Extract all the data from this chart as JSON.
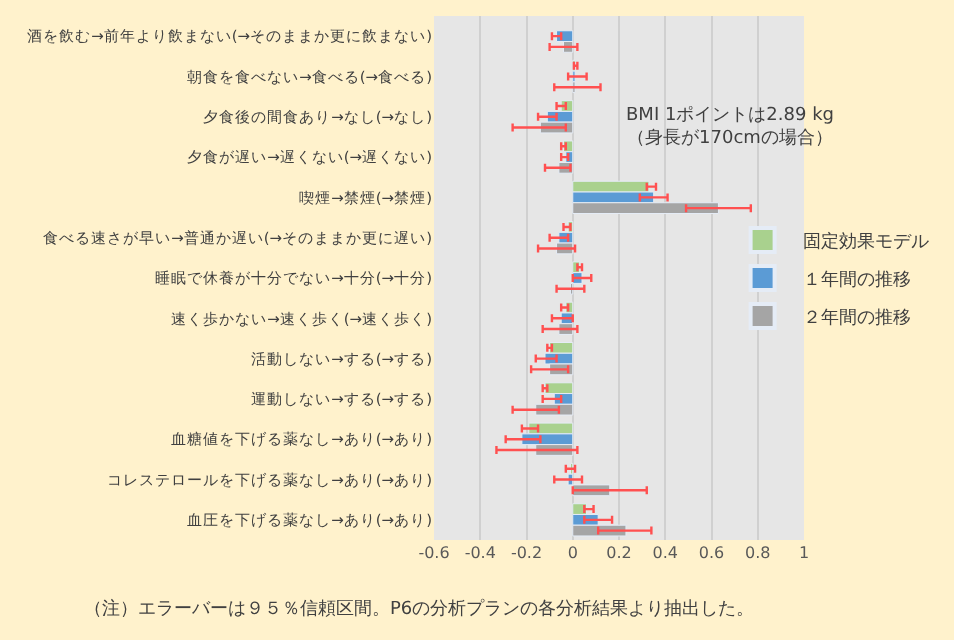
{
  "chart_data": {
    "type": "bar",
    "orientation": "horizontal",
    "categories": [
      "酒を飲む→前年より飲まない(→そのままか更に飲まない)",
      "朝食を食べない→食べる(→食べる)",
      "夕食後の間食あり→なし(→なし)",
      "夕食が遅い→遅くない(→遅くない)",
      "喫煙→禁煙(→禁煙)",
      "食べる速さが早い→普通か遅い(→そのままか更に遅い)",
      "睡眠で休養が十分でない→十分(→十分)",
      "速く歩かない→速く歩く(→速く歩く)",
      "活動しない→する(→する)",
      "運動しない→する(→する)",
      "血糖値を下げる薬なし→あり(→あり)",
      "コレステロールを下げる薬なし→あり(→あり)",
      "血圧を下げる薬なし→あり(→あり)"
    ],
    "series": [
      {
        "name": "固定効果モデル",
        "color": "#a9d18e",
        "values": [
          null,
          0.01,
          -0.05,
          -0.04,
          0.33,
          -0.02,
          0.03,
          -0.03,
          -0.1,
          -0.12,
          -0.19,
          -0.01,
          0.06
        ],
        "errors": [
          null,
          [
            0.005,
            0.02
          ],
          [
            -0.07,
            -0.03
          ],
          [
            -0.05,
            -0.03
          ],
          [
            0.32,
            0.36
          ],
          [
            -0.04,
            -0.01
          ],
          [
            0.02,
            0.04
          ],
          [
            -0.05,
            -0.02
          ],
          [
            -0.11,
            -0.09
          ],
          [
            -0.13,
            -0.11
          ],
          [
            -0.22,
            -0.15
          ],
          [
            -0.03,
            0.01
          ],
          [
            0.05,
            0.09
          ]
        ]
      },
      {
        "name": "１年間の推移",
        "color": "#5b9bd5",
        "values": [
          -0.07,
          0.01,
          -0.11,
          -0.03,
          0.35,
          -0.06,
          0.04,
          -0.05,
          -0.12,
          -0.08,
          -0.22,
          -0.02,
          0.11
        ],
        "errors": [
          [
            -0.09,
            -0.05
          ],
          [
            -0.02,
            0.06
          ],
          [
            -0.15,
            -0.07
          ],
          [
            -0.05,
            -0.02
          ],
          [
            0.29,
            0.41
          ],
          [
            -0.1,
            -0.02
          ],
          [
            0.0,
            0.08
          ],
          [
            -0.09,
            0.0
          ],
          [
            -0.16,
            -0.07
          ],
          [
            -0.13,
            -0.05
          ],
          [
            -0.29,
            -0.14
          ],
          [
            -0.08,
            0.04
          ],
          [
            0.05,
            0.17
          ]
        ]
      },
      {
        "name": "２年間の推移",
        "color": "#a5a5a5",
        "values": [
          -0.04,
          0.01,
          -0.14,
          -0.06,
          0.63,
          -0.07,
          -0.01,
          -0.06,
          -0.1,
          -0.16,
          -0.16,
          0.16,
          0.23
        ],
        "errors": [
          [
            -0.1,
            0.02
          ],
          [
            -0.08,
            0.12
          ],
          [
            -0.26,
            -0.03
          ],
          [
            -0.12,
            -0.01
          ],
          [
            0.49,
            0.77
          ],
          [
            -0.15,
            0.01
          ],
          [
            -0.07,
            0.05
          ],
          [
            -0.13,
            0.02
          ],
          [
            -0.18,
            -0.02
          ],
          [
            -0.26,
            -0.06
          ],
          [
            -0.33,
            0.02
          ],
          [
            0.0,
            0.32
          ],
          [
            0.11,
            0.34
          ]
        ]
      }
    ],
    "xlim": [
      -0.6,
      1
    ],
    "xticks": [
      -0.6,
      -0.4,
      -0.2,
      0,
      0.2,
      0.4,
      0.6,
      0.8,
      1
    ],
    "grid": "x",
    "legend": "right",
    "annotations": [
      "BMI 1ポイントは2.89 kg\n（身長が170cmの場合）",
      "（注）エラーバーは９５％信頼区間。P6の分析プランの各分析結果より抽出した。"
    ]
  }
}
